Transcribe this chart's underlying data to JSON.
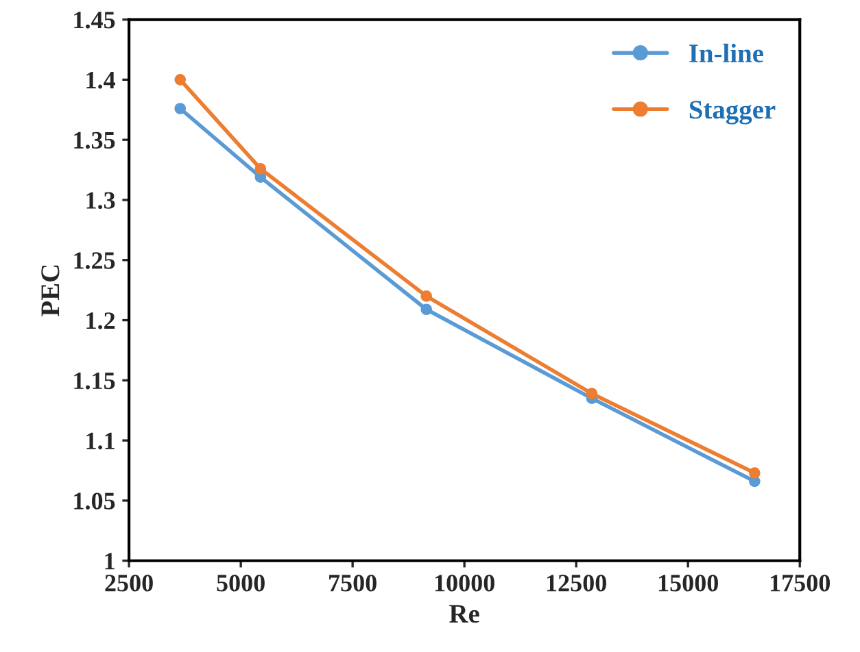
{
  "chart_data": {
    "type": "line",
    "xlabel": "Re",
    "ylabel": "PEC",
    "x": [
      3645,
      5440,
      9150,
      12850,
      16490
    ],
    "series": [
      {
        "name": "In-line",
        "color": "#5b9bd5",
        "values": [
          1.376,
          1.319,
          1.209,
          1.135,
          1.066
        ]
      },
      {
        "name": "Stagger",
        "color": "#ed7d31",
        "values": [
          1.4,
          1.326,
          1.22,
          1.139,
          1.073
        ]
      }
    ],
    "xlim": [
      2500,
      17500
    ],
    "xticks": [
      2500,
      5000,
      7500,
      10000,
      12500,
      15000,
      17500
    ],
    "ylim": [
      1,
      1.45
    ],
    "yticks": [
      1,
      {
        "value": 1.05,
        "label": "1.05"
      },
      {
        "value": 1.1,
        "label": "1.1"
      },
      {
        "value": 1.15,
        "label": "1.15"
      },
      {
        "value": 1.2,
        "label": "1.2"
      },
      {
        "value": 1.25,
        "label": "1.25"
      },
      {
        "value": 1.3,
        "label": "1.3"
      },
      {
        "value": 1.35,
        "label": "1.35"
      },
      {
        "value": 1.4,
        "label": "1.4"
      },
      {
        "value": 1.45,
        "label": "1.45"
      }
    ],
    "grid": false,
    "legend": "top right",
    "marker": "circle",
    "line_style": "solid"
  }
}
